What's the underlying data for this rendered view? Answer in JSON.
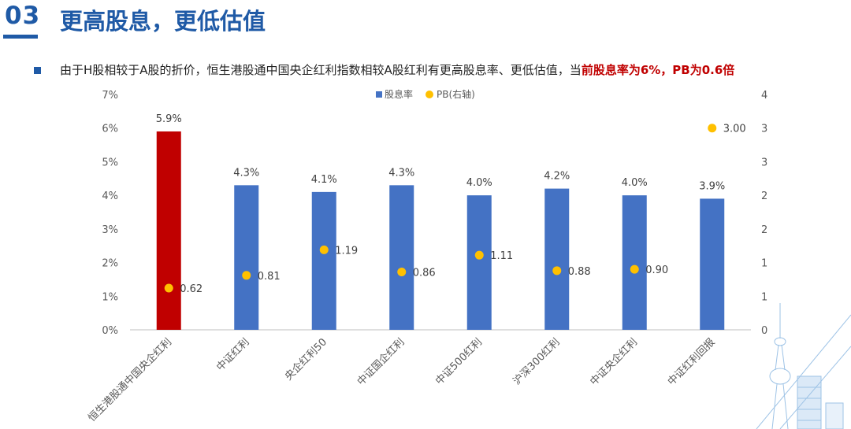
{
  "header": {
    "section_number": "03",
    "title": "更高股息，更低估值"
  },
  "bullet": {
    "text": "由于H股相较于A股的折价，恒生港股通中国央企红利指数相较A股红利有更高股息率、更低估值，当",
    "highlight": "前股息率为6%，PB为0.6倍"
  },
  "colors": {
    "brand": "#1f5aa6",
    "highlight": "#c00000",
    "bar_primary": "#c00000",
    "bar_default": "#4472c4",
    "pb_dot": "#ffc000"
  },
  "chart_data": {
    "type": "bar",
    "categories": [
      "恒生港股通中国央企红利",
      "中证红利",
      "央企红利50",
      "中证国企红利",
      "中证500红利",
      "沪深300红利",
      "中证央企红利",
      "中证红利回报"
    ],
    "series": [
      {
        "name": "股息率",
        "values": [
          5.9,
          4.3,
          4.1,
          4.3,
          4.0,
          4.2,
          4.0,
          3.9
        ],
        "labels": [
          "5.9%",
          "4.3%",
          "4.1%",
          "4.3%",
          "4.0%",
          "4.2%",
          "4.0%",
          "3.9%"
        ],
        "axis": "left",
        "mark": "bar"
      },
      {
        "name": "PB(右轴)",
        "values": [
          0.62,
          0.81,
          1.19,
          0.86,
          1.11,
          0.88,
          0.9,
          3.0
        ],
        "labels": [
          "0.62",
          "0.81",
          "1.19",
          "0.86",
          "1.11",
          "0.88",
          "0.90",
          "3.00"
        ],
        "axis": "right",
        "mark": "scatter"
      }
    ],
    "ylim_left": [
      0,
      7
    ],
    "ylim_right": [
      0,
      3.5
    ],
    "left_ticks": [
      "0%",
      "1%",
      "2%",
      "3%",
      "4%",
      "5%",
      "6%",
      "7%"
    ],
    "right_ticks": [
      "0",
      "1",
      "1",
      "2",
      "2",
      "3",
      "3",
      "4"
    ],
    "legend_position": "top-center",
    "grid": false
  }
}
